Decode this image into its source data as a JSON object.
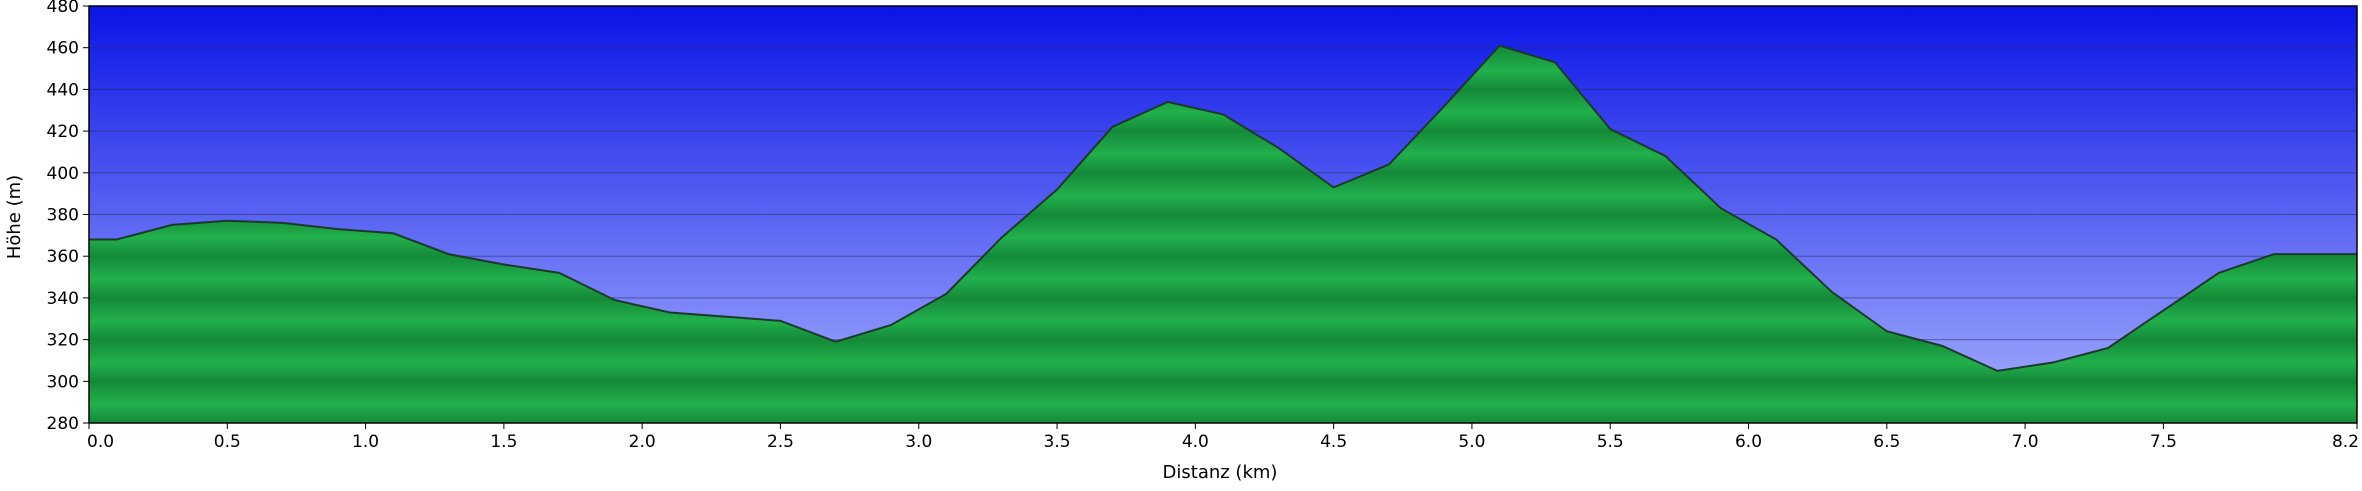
{
  "chart_data": {
    "type": "area",
    "title": "",
    "xlabel": "Distanz (km)",
    "ylabel": "Höhe (m)",
    "xlim": [
      0,
      8.2
    ],
    "ylim": [
      280,
      480
    ],
    "x_ticks": [
      0.0,
      0.5,
      1.0,
      1.5,
      2.0,
      2.5,
      3.0,
      3.5,
      4.0,
      4.5,
      5.0,
      5.5,
      6.0,
      6.5,
      7.0,
      7.5,
      8.2
    ],
    "x_tick_labels": [
      "0.0",
      "0.5",
      "1.0",
      "1.5",
      "2.0",
      "2.5",
      "3.0",
      "3.5",
      "4.0",
      "4.5",
      "5.0",
      "5.5",
      "6.0",
      "6.5",
      "7.0",
      "7.5",
      "8.2"
    ],
    "y_ticks": [
      280,
      300,
      320,
      340,
      360,
      380,
      400,
      420,
      440,
      460,
      480
    ],
    "y_tick_labels": [
      "280",
      "300",
      "320",
      "340",
      "360",
      "380",
      "400",
      "420",
      "440",
      "460",
      "480"
    ],
    "grid": true,
    "colors": {
      "sky_top": "#0a14e6",
      "sky_bottom": "#a8b2ff",
      "fill_light": "#22b04c",
      "fill_dark": "#148a38",
      "outline": "#1c3a2a",
      "grid": "#2a2a60",
      "frame": "#000000"
    },
    "series": [
      {
        "x": [
          0.0,
          0.1,
          0.3,
          0.5,
          0.7,
          0.9,
          1.1,
          1.3,
          1.5,
          1.7,
          1.9,
          2.1,
          2.3,
          2.5,
          2.7,
          2.9,
          3.1,
          3.3,
          3.5,
          3.7,
          3.9,
          4.1,
          4.3,
          4.5,
          4.7,
          4.9,
          5.1,
          5.3,
          5.5,
          5.7,
          5.9,
          6.1,
          6.3,
          6.5,
          6.7,
          6.9,
          7.1,
          7.3,
          7.5,
          7.7,
          7.9,
          8.2
        ],
        "y": [
          368,
          368,
          375,
          377,
          376,
          373,
          371,
          361,
          356,
          352,
          339,
          333,
          331,
          329,
          319,
          327,
          342,
          369,
          392,
          422,
          434,
          428,
          412,
          393,
          404,
          432,
          461,
          453,
          421,
          408,
          383,
          368,
          343,
          324,
          317,
          305,
          309,
          316,
          334,
          352,
          361,
          361
        ]
      }
    ]
  }
}
